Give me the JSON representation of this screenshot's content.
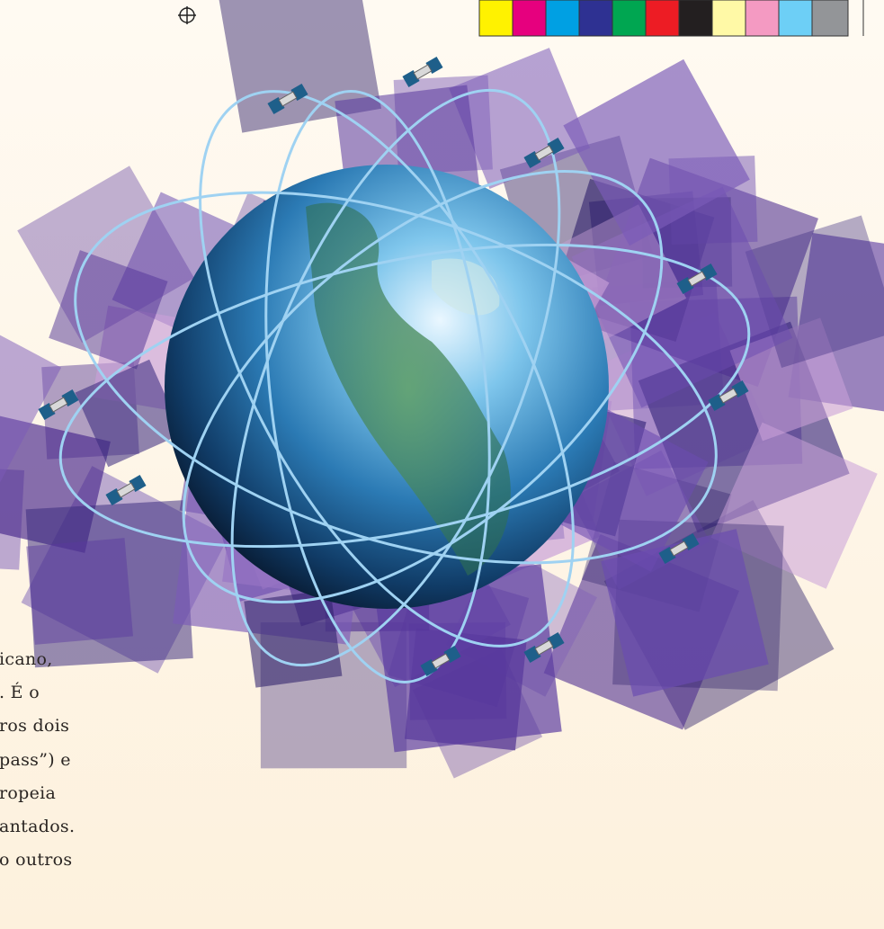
{
  "body_text": {
    "lines": [
      "icano,",
      ". É o",
      "ros dois",
      "pass”) e",
      "ropeia",
      "antados.",
      "o outros"
    ]
  }
}
